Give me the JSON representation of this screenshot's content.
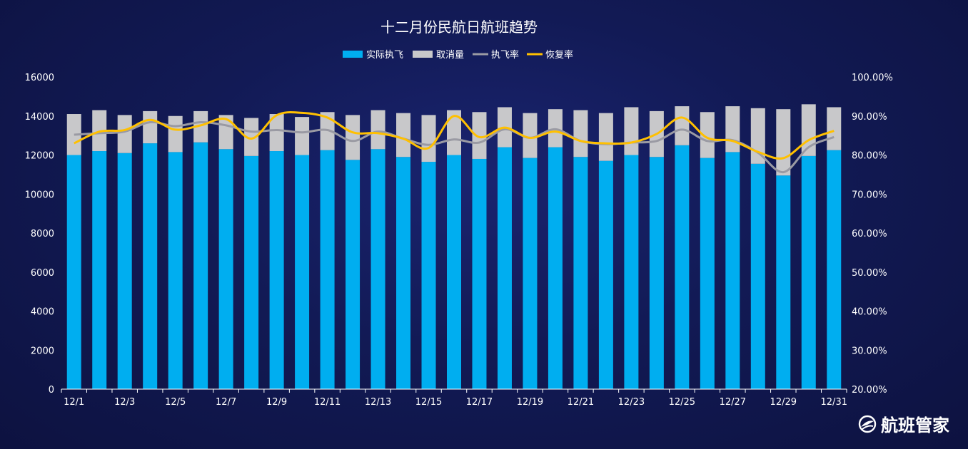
{
  "brand": {
    "name": "航班管家",
    "icon": "globe-plane-icon"
  },
  "colors": {
    "actual": "#00aef0",
    "cancelled": "#c8c8ca",
    "exec_rate": "#9a9aa3",
    "recovery_rate": "#ffc000"
  },
  "chart_data": {
    "type": "bar",
    "title": "十二月份民航日航班趋势",
    "legend": [
      "实际执飞",
      "取消量",
      "执飞率",
      "恢复率"
    ],
    "legend_position": "top-center",
    "categories": [
      "12/1",
      "12/2",
      "12/3",
      "12/4",
      "12/5",
      "12/6",
      "12/7",
      "12/8",
      "12/9",
      "12/10",
      "12/11",
      "12/12",
      "12/13",
      "12/14",
      "12/15",
      "12/16",
      "12/17",
      "12/18",
      "12/19",
      "12/20",
      "12/21",
      "12/22",
      "12/23",
      "12/24",
      "12/25",
      "12/26",
      "12/27",
      "12/28",
      "12/29",
      "12/30",
      "12/31"
    ],
    "x_tick_labels": [
      "12/1",
      "12/3",
      "12/5",
      "12/7",
      "12/9",
      "12/11",
      "12/13",
      "12/15",
      "12/17",
      "12/19",
      "12/21",
      "12/23",
      "12/25",
      "12/27",
      "12/29",
      "12/31"
    ],
    "y_left": {
      "min": 0,
      "max": 16000,
      "ticks": [
        "0",
        "2000",
        "4000",
        "6000",
        "8000",
        "10000",
        "12000",
        "14000",
        "16000"
      ]
    },
    "y_right": {
      "min": 20,
      "max": 100,
      "ticks": [
        "20.00%",
        "30.00%",
        "40.00%",
        "50.00%",
        "60.00%",
        "70.00%",
        "80.00%",
        "90.00%",
        "100.00%"
      ]
    },
    "grid": false,
    "series": [
      {
        "name": "实际执飞",
        "kind": "bar",
        "axis": "left",
        "values": [
          12000,
          12200,
          12100,
          12600,
          12150,
          12650,
          12300,
          11950,
          12200,
          12000,
          12250,
          11750,
          12300,
          11900,
          11650,
          12000,
          11800,
          12400,
          11850,
          12400,
          11900,
          11700,
          12000,
          11900,
          12500,
          11850,
          12150,
          11550,
          10950,
          11950,
          12250
        ]
      },
      {
        "name": "取消量",
        "kind": "stacked-bar",
        "axis": "left",
        "values": [
          2100,
          2100,
          1950,
          1650,
          1850,
          1600,
          1750,
          1950,
          1900,
          1950,
          1950,
          2300,
          2000,
          2250,
          2400,
          2300,
          2400,
          2050,
          2300,
          1950,
          2400,
          2450,
          2450,
          2350,
          2000,
          2350,
          2350,
          2850,
          3400,
          2650,
          2200
        ]
      },
      {
        "name": "执飞率",
        "kind": "line",
        "axis": "right",
        "values": [
          85.2,
          85.6,
          86.0,
          88.4,
          87.4,
          88.4,
          87.6,
          86.0,
          86.4,
          85.8,
          86.4,
          83.6,
          86.0,
          84.2,
          82.6,
          84.0,
          83.2,
          86.6,
          84.4,
          86.6,
          83.6,
          82.8,
          83.2,
          83.6,
          86.5,
          83.6,
          83.8,
          80.6,
          75.6,
          82.0,
          84.6
        ]
      },
      {
        "name": "恢复率",
        "kind": "line",
        "axis": "right",
        "values": [
          83.0,
          86.0,
          86.4,
          89.0,
          86.5,
          87.6,
          89.2,
          84.2,
          90.2,
          90.8,
          89.6,
          85.8,
          85.6,
          84.2,
          81.8,
          90.0,
          84.6,
          87.0,
          84.4,
          86.0,
          83.6,
          83.0,
          83.2,
          85.4,
          89.6,
          84.4,
          83.6,
          80.8,
          79.2,
          83.8,
          86.2
        ]
      }
    ]
  }
}
